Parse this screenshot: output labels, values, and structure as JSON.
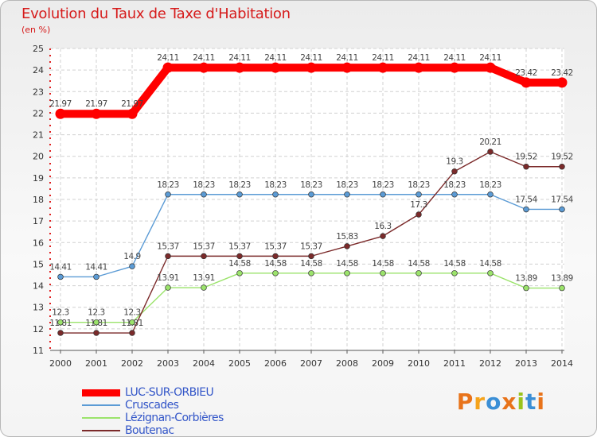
{
  "title": "Evolution du Taux de Taxe d'Habitation",
  "unit_label": "(en %)",
  "logo": {
    "text": "Proxiti",
    "letter_colors": [
      "#e8731a",
      "#f5a31a",
      "#3b8fd6",
      "#e8731a",
      "#9ac31c",
      "#3b8fd6",
      "#e8731a"
    ]
  },
  "chart_data": {
    "type": "line",
    "title": "Evolution du Taux de Taxe d'Habitation",
    "ylabel": "(en %)",
    "x": [
      "2000",
      "2001",
      "2002",
      "2003",
      "2004",
      "2005",
      "2006",
      "2007",
      "2008",
      "2009",
      "2010",
      "2011",
      "2012",
      "2013",
      "2014"
    ],
    "y_ticks": [
      "11",
      "12",
      "13",
      "14",
      "15",
      "16",
      "17",
      "18",
      "19",
      "20",
      "21",
      "22",
      "23",
      "24",
      "25"
    ],
    "ylim": [
      11,
      25
    ],
    "grid": true,
    "legend_position": "bottom-left",
    "series": [
      {
        "name": "LUC-SUR-ORBIEU",
        "color": "#ff0000",
        "width": "thick",
        "values": [
          21.97,
          21.97,
          21.97,
          24.11,
          24.11,
          24.11,
          24.11,
          24.11,
          24.11,
          24.11,
          24.11,
          24.11,
          24.11,
          23.42,
          23.42
        ],
        "labels": [
          "21.97",
          "21.97",
          "21.97",
          "24.11",
          "24.11",
          "24.11",
          "24.11",
          "24.11",
          "24.11",
          "24.11",
          "24.11",
          "24.11",
          "24.11",
          "23.42",
          "23.42"
        ]
      },
      {
        "name": "Cruscades",
        "color": "#5b9bd5",
        "width": "thin",
        "values": [
          14.41,
          14.41,
          14.9,
          18.23,
          18.23,
          18.23,
          18.23,
          18.23,
          18.23,
          18.23,
          18.23,
          18.23,
          18.23,
          17.54,
          17.54
        ],
        "labels": [
          "14.41",
          "14.41",
          "14.9",
          "18.23",
          "18.23",
          "18.23",
          "18.23",
          "18.23",
          "18.23",
          "18.23",
          "18.23",
          "18.23",
          "18.23",
          "17.54",
          "17.54"
        ]
      },
      {
        "name": "Lézignan-Corbières",
        "color": "#9be36b",
        "width": "thin",
        "values": [
          12.3,
          12.3,
          12.3,
          13.91,
          13.91,
          14.58,
          14.58,
          14.58,
          14.58,
          14.58,
          14.58,
          14.58,
          14.58,
          13.89,
          13.89
        ],
        "labels": [
          "12.3",
          "12.3",
          "12.3",
          "13.91",
          "13.91",
          "14.58",
          "14.58",
          "14.58",
          "14.58",
          "14.58",
          "14.58",
          "14.58",
          "14.58",
          "13.89",
          "13.89"
        ]
      },
      {
        "name": "Boutenac",
        "color": "#7b2a2a",
        "width": "thin",
        "values": [
          11.81,
          11.81,
          11.81,
          15.37,
          15.37,
          15.37,
          15.37,
          15.37,
          15.83,
          16.3,
          17.3,
          19.3,
          20.21,
          19.52,
          19.52
        ],
        "labels": [
          "11.81",
          "11.81",
          "11.81",
          "15.37",
          "15.37",
          "15.37",
          "15.37",
          "15.37",
          "15.83",
          "16.3",
          "17.3",
          "19.3",
          "20.21",
          "19.52",
          "19.52"
        ]
      }
    ]
  }
}
